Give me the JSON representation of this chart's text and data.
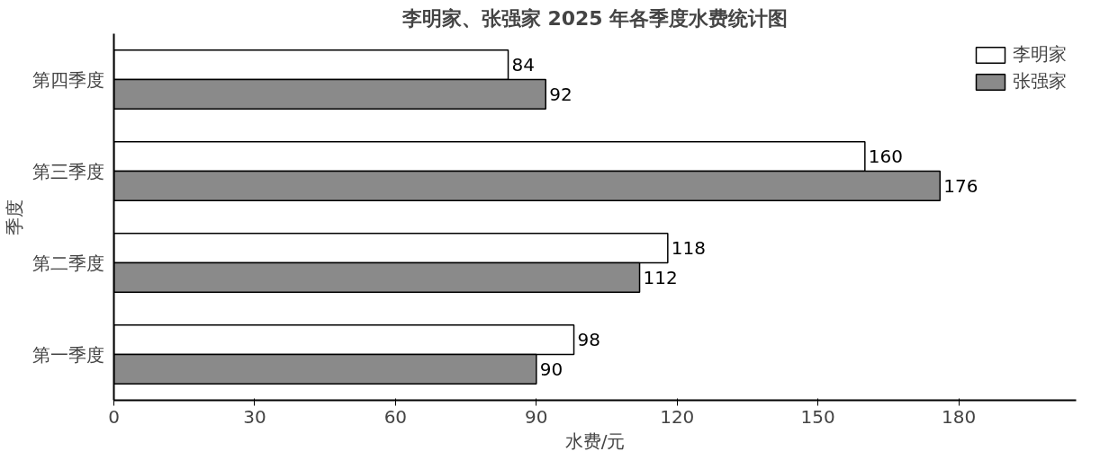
{
  "chart_data": {
    "type": "bar",
    "orientation": "horizontal",
    "title": "李明家、张强家 2025 年各季度水费统计图",
    "xlabel": "水费/元",
    "ylabel": "季度",
    "categories": [
      "第四季度",
      "第三季度",
      "第二季度",
      "第一季度"
    ],
    "series": [
      {
        "name": "李明家",
        "color": "#ffffff",
        "values": [
          84,
          160,
          118,
          98
        ]
      },
      {
        "name": "张强家",
        "color": "#8a8a8a",
        "values": [
          92,
          176,
          112,
          90
        ]
      }
    ],
    "xlim": [
      0,
      205
    ],
    "xticks": [
      0,
      30,
      60,
      90,
      120,
      150,
      180
    ],
    "data_labels": true,
    "legend": "top right",
    "grid": false
  }
}
